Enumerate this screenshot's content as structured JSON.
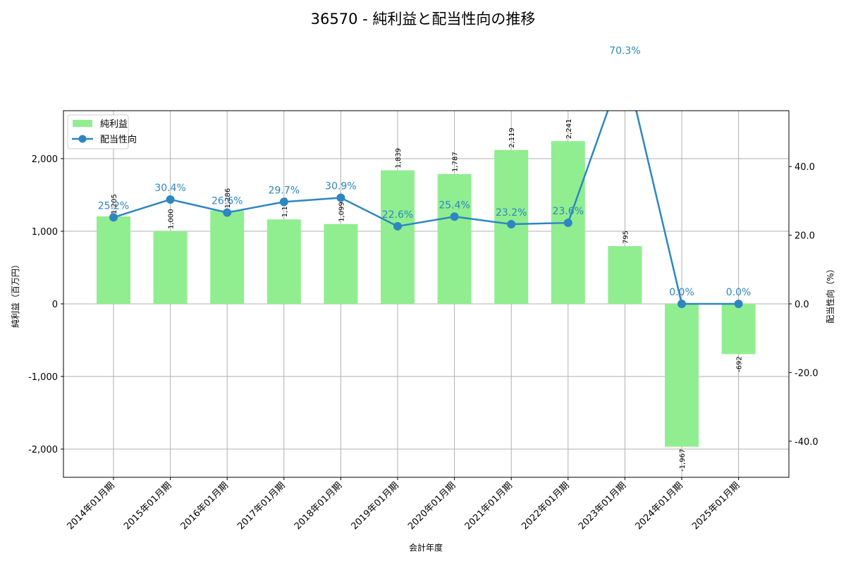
{
  "chart_data": {
    "type": "bar+line",
    "title": "36570 - 純利益と配当性向の推移",
    "xlabel": "会計年度",
    "ylabel_left": "純利益（百万円）",
    "ylabel_right": "配当性向（%）",
    "categories": [
      "2014年01月期",
      "2015年01月期",
      "2016年01月期",
      "2017年01月期",
      "2018年01月期",
      "2019年01月期",
      "2020年01月期",
      "2021年01月期",
      "2022年01月期",
      "2023年01月期",
      "2024年01月期",
      "2025年01月期"
    ],
    "series": [
      {
        "name": "純利益",
        "type": "bar",
        "axis": "left",
        "color": "#90EE90",
        "values": [
          1205,
          1000,
          1286,
          1163,
          1099,
          1839,
          1787,
          2119,
          2241,
          795,
          -1967,
          -692
        ],
        "labels": [
          "1,205",
          "1,000",
          "1,286",
          "1,163",
          "1,099",
          "1,839",
          "1,787",
          "2,119",
          "2,241",
          "795",
          "-1,967",
          "-692"
        ]
      },
      {
        "name": "配当性向",
        "type": "line",
        "axis": "right",
        "color": "#2E86C1",
        "values": [
          25.2,
          30.4,
          26.6,
          29.7,
          30.9,
          22.6,
          25.4,
          23.2,
          23.6,
          70.3,
          0.0,
          0.0
        ],
        "labels": [
          "25.2%",
          "30.4%",
          "26.6%",
          "29.7%",
          "30.9%",
          "22.6%",
          "25.4%",
          "23.2%",
          "23.6%",
          "70.3%",
          "0.0%",
          "0.0%"
        ]
      }
    ],
    "ylim_left": [
      -2400,
      2680
    ],
    "ylim_right": [
      -50.8,
      56.1
    ],
    "yticks_left": [
      "2,000",
      "1,000",
      "0",
      "-1,000",
      "-2,000"
    ],
    "yticks_left_values": [
      2000,
      1000,
      0,
      -1000,
      -2000
    ],
    "yticks_right": [
      "40.0",
      "20.0",
      "0.0",
      "-20.0",
      "-40.0"
    ],
    "yticks_right_values": [
      40,
      20,
      0,
      -20,
      -40
    ],
    "grid": true,
    "legend_position": "upper left",
    "legend": [
      "純利益",
      "配当性向"
    ]
  }
}
